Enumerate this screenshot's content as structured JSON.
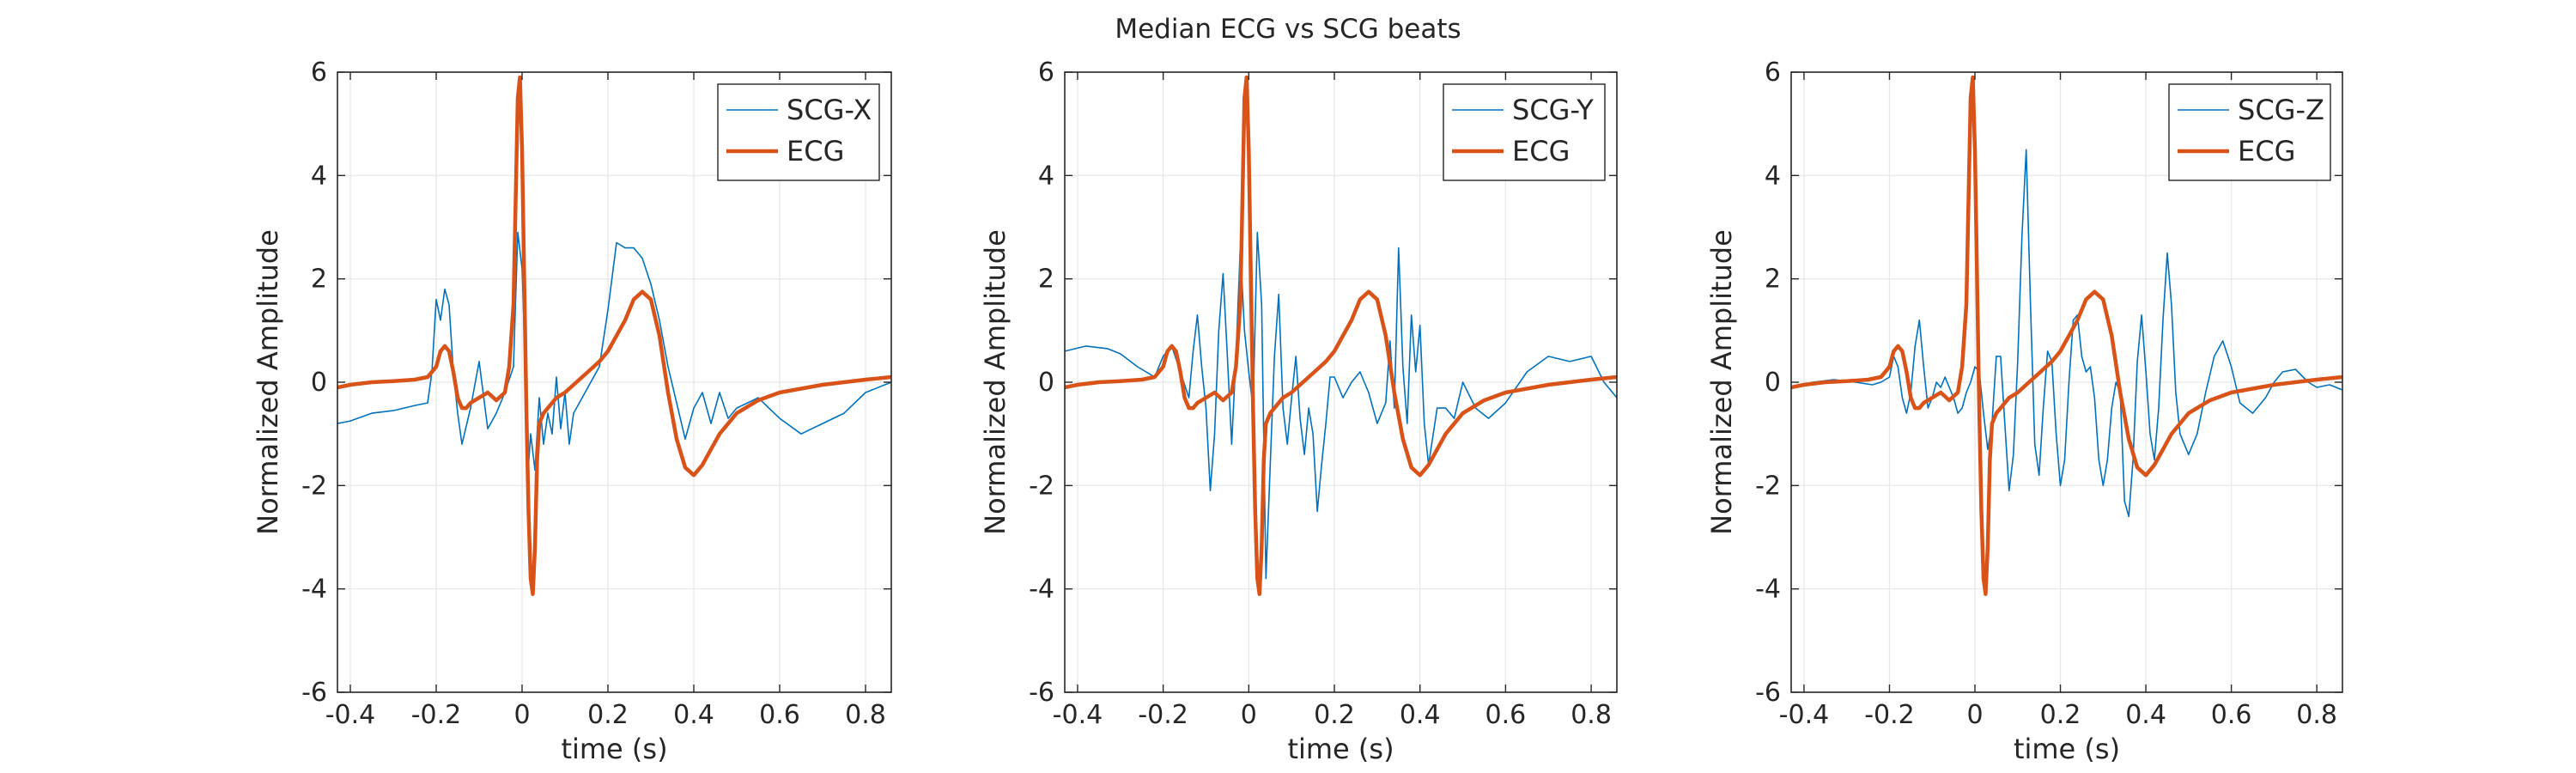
{
  "figure": {
    "title": "Median ECG vs SCG beats"
  },
  "colors": {
    "scg": "#0072BD",
    "ecg": "#D95319",
    "grid": "#e6e6e6",
    "axis": "#262626"
  },
  "chart_data": [
    {
      "type": "line",
      "xlabel": "time (s)",
      "ylabel": "Normalized Amplitude",
      "xlim": [
        -0.43,
        0.86
      ],
      "ylim": [
        -6,
        6
      ],
      "xticks": [
        -0.4,
        -0.2,
        0,
        0.2,
        0.4,
        0.6,
        0.8
      ],
      "xtick_labels": [
        "-0.4",
        "-0.2",
        "0",
        "0.2",
        "0.4",
        "0.6",
        "0.8"
      ],
      "yticks": [
        -6,
        -4,
        -2,
        0,
        2,
        4,
        6
      ],
      "ytick_labels": [
        "-6",
        "-4",
        "-2",
        "0",
        "2",
        "4",
        "6"
      ],
      "grid": true,
      "legend_position": "top-right",
      "series": [
        {
          "name": "SCG-X",
          "x": [
            -0.43,
            -0.4,
            -0.35,
            -0.3,
            -0.25,
            -0.22,
            -0.21,
            -0.2,
            -0.19,
            -0.18,
            -0.17,
            -0.16,
            -0.15,
            -0.14,
            -0.12,
            -0.1,
            -0.08,
            -0.06,
            -0.04,
            -0.02,
            -0.01,
            0,
            0.005,
            0.01,
            0.015,
            0.02,
            0.03,
            0.04,
            0.05,
            0.06,
            0.07,
            0.08,
            0.09,
            0.1,
            0.11,
            0.12,
            0.14,
            0.16,
            0.18,
            0.2,
            0.22,
            0.24,
            0.26,
            0.28,
            0.3,
            0.32,
            0.34,
            0.36,
            0.38,
            0.4,
            0.42,
            0.44,
            0.46,
            0.48,
            0.5,
            0.55,
            0.6,
            0.65,
            0.7,
            0.75,
            0.8,
            0.86
          ],
          "y": [
            -0.8,
            -0.75,
            -0.6,
            -0.55,
            -0.45,
            -0.4,
            0.2,
            1.6,
            1.2,
            1.8,
            1.5,
            0.2,
            -0.6,
            -1.2,
            -0.5,
            0.4,
            -0.9,
            -0.6,
            -0.2,
            0.3,
            2.9,
            2.2,
            1.0,
            -0.6,
            -1.6,
            -1.0,
            -1.7,
            -0.3,
            -1.2,
            -0.6,
            -1.0,
            0.1,
            -0.9,
            -0.2,
            -1.2,
            -0.6,
            -0.3,
            0.0,
            0.3,
            1.4,
            2.7,
            2.6,
            2.6,
            2.4,
            1.9,
            1.2,
            0.3,
            -0.4,
            -1.1,
            -0.5,
            -0.2,
            -0.8,
            -0.2,
            -0.7,
            -0.5,
            -0.3,
            -0.7,
            -1.0,
            -0.8,
            -0.6,
            -0.2,
            0.0
          ]
        },
        {
          "name": "ECG",
          "x": [
            -0.43,
            -0.4,
            -0.35,
            -0.3,
            -0.25,
            -0.22,
            -0.2,
            -0.19,
            -0.18,
            -0.17,
            -0.16,
            -0.15,
            -0.14,
            -0.13,
            -0.12,
            -0.1,
            -0.08,
            -0.06,
            -0.04,
            -0.03,
            -0.02,
            -0.015,
            -0.01,
            -0.005,
            0,
            0.005,
            0.01,
            0.015,
            0.02,
            0.025,
            0.03,
            0.035,
            0.04,
            0.05,
            0.06,
            0.08,
            0.1,
            0.12,
            0.14,
            0.16,
            0.18,
            0.2,
            0.22,
            0.24,
            0.26,
            0.28,
            0.3,
            0.32,
            0.34,
            0.36,
            0.38,
            0.4,
            0.42,
            0.44,
            0.46,
            0.5,
            0.55,
            0.6,
            0.7,
            0.8,
            0.86
          ],
          "y": [
            -0.1,
            -0.05,
            0.0,
            0.02,
            0.05,
            0.1,
            0.3,
            0.6,
            0.7,
            0.6,
            0.2,
            -0.3,
            -0.5,
            -0.5,
            -0.4,
            -0.3,
            -0.2,
            -0.35,
            -0.2,
            0.3,
            1.5,
            3.5,
            5.5,
            5.9,
            4.5,
            2.0,
            -0.5,
            -2.5,
            -3.8,
            -4.1,
            -3.2,
            -1.5,
            -0.8,
            -0.6,
            -0.5,
            -0.3,
            -0.2,
            -0.05,
            0.1,
            0.25,
            0.4,
            0.6,
            0.9,
            1.2,
            1.6,
            1.75,
            1.6,
            0.9,
            -0.2,
            -1.1,
            -1.65,
            -1.8,
            -1.6,
            -1.3,
            -1.0,
            -0.6,
            -0.35,
            -0.2,
            -0.05,
            0.05,
            0.1
          ]
        }
      ]
    },
    {
      "type": "line",
      "xlabel": "time (s)",
      "ylabel": "Normalized Amplitude",
      "xlim": [
        -0.43,
        0.86
      ],
      "ylim": [
        -6,
        6
      ],
      "xticks": [
        -0.4,
        -0.2,
        0,
        0.2,
        0.4,
        0.6,
        0.8
      ],
      "xtick_labels": [
        "-0.4",
        "-0.2",
        "0",
        "0.2",
        "0.4",
        "0.6",
        "0.8"
      ],
      "yticks": [
        -6,
        -4,
        -2,
        0,
        2,
        4,
        6
      ],
      "ytick_labels": [
        "-6",
        "-4",
        "-2",
        "0",
        "2",
        "4",
        "6"
      ],
      "grid": true,
      "legend_position": "top-right",
      "series": [
        {
          "name": "SCG-Y",
          "x": [
            -0.43,
            -0.38,
            -0.33,
            -0.3,
            -0.26,
            -0.22,
            -0.2,
            -0.18,
            -0.16,
            -0.14,
            -0.13,
            -0.12,
            -0.11,
            -0.1,
            -0.09,
            -0.08,
            -0.07,
            -0.06,
            -0.05,
            -0.04,
            -0.03,
            -0.02,
            -0.01,
            0,
            0.01,
            0.02,
            0.03,
            0.04,
            0.05,
            0.06,
            0.07,
            0.08,
            0.09,
            0.1,
            0.11,
            0.12,
            0.13,
            0.14,
            0.15,
            0.16,
            0.17,
            0.18,
            0.19,
            0.2,
            0.22,
            0.24,
            0.26,
            0.28,
            0.3,
            0.32,
            0.33,
            0.34,
            0.35,
            0.36,
            0.37,
            0.38,
            0.39,
            0.4,
            0.41,
            0.42,
            0.44,
            0.46,
            0.48,
            0.5,
            0.53,
            0.56,
            0.6,
            0.65,
            0.7,
            0.75,
            0.8,
            0.83,
            0.86
          ],
          "y": [
            0.6,
            0.7,
            0.65,
            0.55,
            0.3,
            0.1,
            0.5,
            0.7,
            0.2,
            -0.3,
            0.6,
            1.3,
            0.3,
            -0.5,
            -2.1,
            -1.0,
            1.0,
            2.1,
            0.5,
            -1.2,
            0.5,
            2.6,
            1.0,
            0.2,
            -0.5,
            2.9,
            1.5,
            -3.8,
            -1.6,
            0.5,
            1.7,
            -0.5,
            -1.2,
            -0.3,
            0.5,
            -0.7,
            -1.4,
            -0.5,
            -1.0,
            -2.5,
            -1.6,
            -0.8,
            0.1,
            0.1,
            -0.3,
            0.0,
            0.2,
            -0.2,
            -0.8,
            -0.4,
            0.8,
            -0.5,
            2.6,
            0.3,
            -0.8,
            1.3,
            0.2,
            1.1,
            -0.8,
            -1.6,
            -0.5,
            -0.5,
            -0.7,
            0.0,
            -0.5,
            -0.7,
            -0.4,
            0.2,
            0.5,
            0.4,
            0.5,
            0.0,
            -0.3
          ]
        },
        {
          "name": "ECG",
          "x": [
            -0.43,
            -0.4,
            -0.35,
            -0.3,
            -0.25,
            -0.22,
            -0.2,
            -0.19,
            -0.18,
            -0.17,
            -0.16,
            -0.15,
            -0.14,
            -0.13,
            -0.12,
            -0.1,
            -0.08,
            -0.06,
            -0.04,
            -0.03,
            -0.02,
            -0.015,
            -0.01,
            -0.005,
            0,
            0.005,
            0.01,
            0.015,
            0.02,
            0.025,
            0.03,
            0.035,
            0.04,
            0.05,
            0.06,
            0.08,
            0.1,
            0.12,
            0.14,
            0.16,
            0.18,
            0.2,
            0.22,
            0.24,
            0.26,
            0.28,
            0.3,
            0.32,
            0.34,
            0.36,
            0.38,
            0.4,
            0.42,
            0.44,
            0.46,
            0.5,
            0.55,
            0.6,
            0.7,
            0.8,
            0.86
          ],
          "y": [
            -0.1,
            -0.05,
            0.0,
            0.02,
            0.05,
            0.1,
            0.3,
            0.6,
            0.7,
            0.6,
            0.2,
            -0.3,
            -0.5,
            -0.5,
            -0.4,
            -0.3,
            -0.2,
            -0.35,
            -0.2,
            0.3,
            1.5,
            3.5,
            5.5,
            5.9,
            4.5,
            2.0,
            -0.5,
            -2.5,
            -3.8,
            -4.1,
            -3.2,
            -1.5,
            -0.8,
            -0.6,
            -0.5,
            -0.3,
            -0.2,
            -0.05,
            0.1,
            0.25,
            0.4,
            0.6,
            0.9,
            1.2,
            1.6,
            1.75,
            1.6,
            0.9,
            -0.2,
            -1.1,
            -1.65,
            -1.8,
            -1.6,
            -1.3,
            -1.0,
            -0.6,
            -0.35,
            -0.2,
            -0.05,
            0.05,
            0.1
          ]
        }
      ]
    },
    {
      "type": "line",
      "xlabel": "time (s)",
      "ylabel": "Normalized Amplitude",
      "xlim": [
        -0.43,
        0.86
      ],
      "ylim": [
        -6,
        6
      ],
      "xticks": [
        -0.4,
        -0.2,
        0,
        0.2,
        0.4,
        0.6,
        0.8
      ],
      "xtick_labels": [
        "-0.4",
        "-0.2",
        "0",
        "0.2",
        "0.4",
        "0.6",
        "0.8"
      ],
      "yticks": [
        -6,
        -4,
        -2,
        0,
        2,
        4,
        6
      ],
      "ytick_labels": [
        "-6",
        "-4",
        "-2",
        "0",
        "2",
        "4",
        "6"
      ],
      "grid": true,
      "legend_position": "top-right",
      "series": [
        {
          "name": "SCG-Z",
          "x": [
            -0.43,
            -0.38,
            -0.33,
            -0.28,
            -0.24,
            -0.22,
            -0.2,
            -0.19,
            -0.18,
            -0.17,
            -0.16,
            -0.15,
            -0.14,
            -0.13,
            -0.12,
            -0.11,
            -0.1,
            -0.09,
            -0.08,
            -0.07,
            -0.06,
            -0.05,
            -0.04,
            -0.03,
            -0.02,
            -0.01,
            0,
            0.01,
            0.02,
            0.03,
            0.04,
            0.05,
            0.06,
            0.07,
            0.08,
            0.09,
            0.1,
            0.11,
            0.12,
            0.13,
            0.14,
            0.15,
            0.16,
            0.17,
            0.18,
            0.19,
            0.2,
            0.21,
            0.22,
            0.23,
            0.24,
            0.25,
            0.26,
            0.27,
            0.28,
            0.29,
            0.3,
            0.31,
            0.32,
            0.33,
            0.34,
            0.35,
            0.36,
            0.37,
            0.38,
            0.39,
            0.4,
            0.41,
            0.42,
            0.43,
            0.44,
            0.45,
            0.46,
            0.47,
            0.48,
            0.5,
            0.52,
            0.54,
            0.56,
            0.58,
            0.6,
            0.62,
            0.65,
            0.68,
            0.7,
            0.72,
            0.75,
            0.78,
            0.8,
            0.83,
            0.86
          ],
          "y": [
            -0.1,
            0.0,
            0.05,
            0.0,
            -0.05,
            0.0,
            0.1,
            0.5,
            0.3,
            -0.3,
            -0.6,
            -0.2,
            0.7,
            1.2,
            0.3,
            -0.5,
            -0.3,
            0.0,
            -0.1,
            0.1,
            -0.1,
            -0.3,
            -0.6,
            -0.5,
            -0.2,
            0.0,
            0.3,
            0.2,
            -0.6,
            -1.3,
            -0.8,
            0.5,
            0.5,
            -0.8,
            -2.1,
            -1.4,
            0.4,
            2.8,
            4.5,
            1.5,
            -1.2,
            -1.8,
            -0.5,
            0.6,
            0.4,
            -1.0,
            -2.0,
            -1.5,
            0.0,
            1.2,
            1.3,
            0.5,
            0.2,
            0.3,
            -0.3,
            -1.5,
            -2.0,
            -1.5,
            -0.5,
            0.0,
            -0.2,
            -2.3,
            -2.6,
            -1.5,
            0.4,
            1.3,
            0.2,
            -1.0,
            -1.5,
            -0.5,
            1.2,
            2.5,
            1.5,
            -0.2,
            -1.0,
            -1.4,
            -1.0,
            -0.2,
            0.5,
            0.8,
            0.3,
            -0.4,
            -0.6,
            -0.3,
            0.0,
            0.2,
            0.25,
            0.0,
            -0.1,
            -0.05,
            -0.15
          ]
        },
        {
          "name": "ECG",
          "x": [
            -0.43,
            -0.4,
            -0.35,
            -0.3,
            -0.25,
            -0.22,
            -0.2,
            -0.19,
            -0.18,
            -0.17,
            -0.16,
            -0.15,
            -0.14,
            -0.13,
            -0.12,
            -0.1,
            -0.08,
            -0.06,
            -0.04,
            -0.03,
            -0.02,
            -0.015,
            -0.01,
            -0.005,
            0,
            0.005,
            0.01,
            0.015,
            0.02,
            0.025,
            0.03,
            0.035,
            0.04,
            0.05,
            0.06,
            0.08,
            0.1,
            0.12,
            0.14,
            0.16,
            0.18,
            0.2,
            0.22,
            0.24,
            0.26,
            0.28,
            0.3,
            0.32,
            0.34,
            0.36,
            0.38,
            0.4,
            0.42,
            0.44,
            0.46,
            0.5,
            0.55,
            0.6,
            0.7,
            0.8,
            0.86
          ],
          "y": [
            -0.1,
            -0.05,
            0.0,
            0.02,
            0.05,
            0.1,
            0.3,
            0.6,
            0.7,
            0.6,
            0.2,
            -0.3,
            -0.5,
            -0.5,
            -0.4,
            -0.3,
            -0.2,
            -0.35,
            -0.2,
            0.3,
            1.5,
            3.5,
            5.5,
            5.9,
            4.5,
            2.0,
            -0.5,
            -2.5,
            -3.8,
            -4.1,
            -3.2,
            -1.5,
            -0.8,
            -0.6,
            -0.5,
            -0.3,
            -0.2,
            -0.05,
            0.1,
            0.25,
            0.4,
            0.6,
            0.9,
            1.2,
            1.6,
            1.75,
            1.6,
            0.9,
            -0.2,
            -1.1,
            -1.65,
            -1.8,
            -1.6,
            -1.3,
            -1.0,
            -0.6,
            -0.35,
            -0.2,
            -0.05,
            0.05,
            0.1
          ]
        }
      ]
    }
  ]
}
